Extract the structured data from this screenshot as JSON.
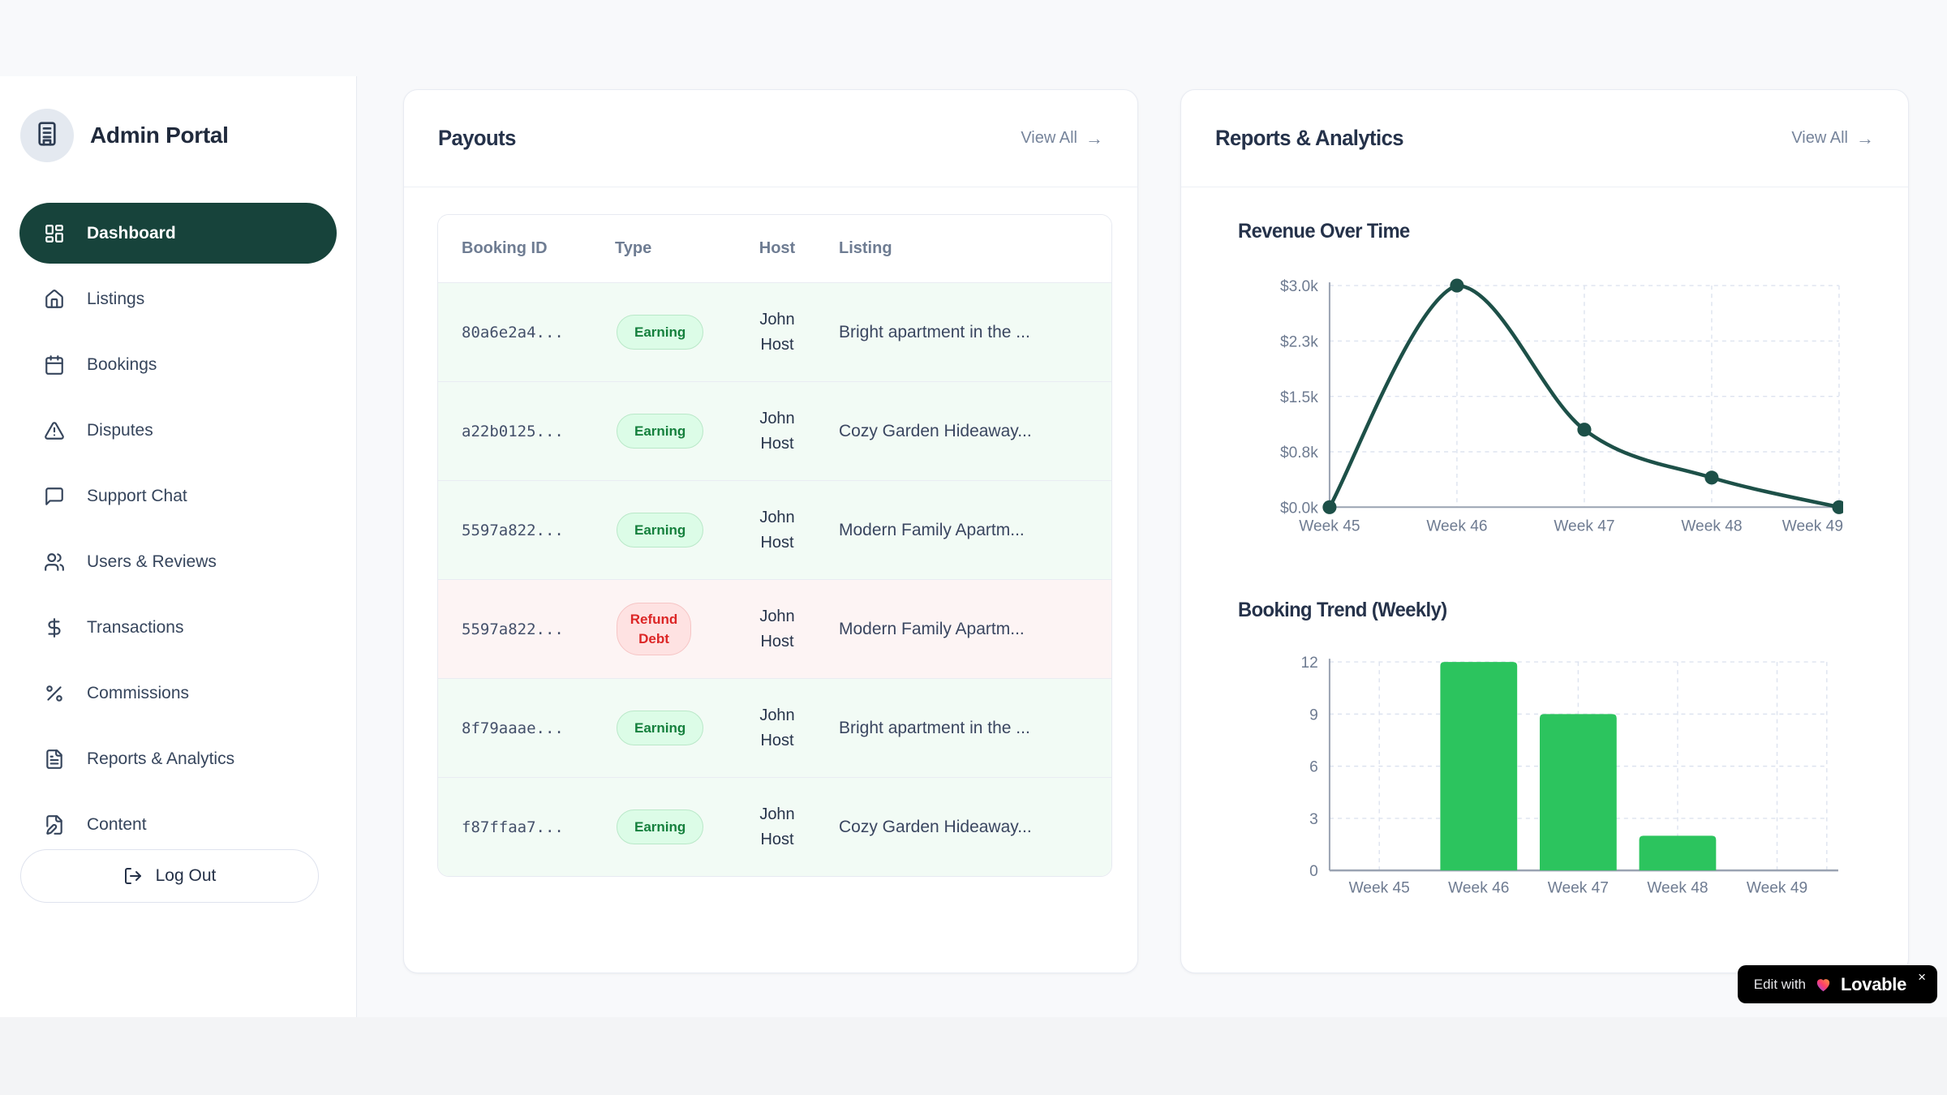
{
  "app": {
    "title": "Admin Portal"
  },
  "sidebar": {
    "items": [
      {
        "label": "Dashboard",
        "icon": "dashboard",
        "active": true
      },
      {
        "label": "Listings",
        "icon": "home",
        "active": false
      },
      {
        "label": "Bookings",
        "icon": "calendar",
        "active": false
      },
      {
        "label": "Disputes",
        "icon": "alert-triangle",
        "active": false
      },
      {
        "label": "Support Chat",
        "icon": "message-square",
        "active": false
      },
      {
        "label": "Users & Reviews",
        "icon": "users",
        "active": false
      },
      {
        "label": "Transactions",
        "icon": "dollar-sign",
        "active": false
      },
      {
        "label": "Commissions",
        "icon": "percent",
        "active": false
      },
      {
        "label": "Reports & Analytics",
        "icon": "file-text",
        "active": false
      },
      {
        "label": "Content",
        "icon": "file-pen",
        "active": false
      }
    ],
    "logout_label": "Log Out"
  },
  "payouts": {
    "title": "Payouts",
    "view_all_label": "View All",
    "view_all_arrow": "→",
    "columns": [
      "Booking ID",
      "Type",
      "Host",
      "Listing"
    ],
    "rows": [
      {
        "booking_id": "80a6e2a4...",
        "type": "Earning",
        "kind": "earning",
        "host": "John Host",
        "listing": "Bright apartment in the ..."
      },
      {
        "booking_id": "a22b0125...",
        "type": "Earning",
        "kind": "earning",
        "host": "John Host",
        "listing": "Cozy Garden Hideaway..."
      },
      {
        "booking_id": "5597a822...",
        "type": "Earning",
        "kind": "earning",
        "host": "John Host",
        "listing": "Modern Family Apartm..."
      },
      {
        "booking_id": "5597a822...",
        "type": "Refund Debt",
        "kind": "refund",
        "host": "John Host",
        "listing": "Modern Family Apartm..."
      },
      {
        "booking_id": "8f79aaae...",
        "type": "Earning",
        "kind": "earning",
        "host": "John Host",
        "listing": "Bright apartment in the ..."
      },
      {
        "booking_id": "f87ffaa7...",
        "type": "Earning",
        "kind": "earning",
        "host": "John Host",
        "listing": "Cozy Garden Hideaway..."
      }
    ]
  },
  "reports": {
    "title": "Reports & Analytics",
    "view_all_label": "View All",
    "view_all_arrow": "→"
  },
  "chart_data": [
    {
      "type": "line",
      "title": "Revenue Over Time",
      "x": [
        "Week 45",
        "Week 46",
        "Week 47",
        "Week 48",
        "Week 49"
      ],
      "values": [
        0,
        3000,
        1050,
        400,
        0
      ],
      "ylim": [
        0,
        3000
      ],
      "y_ticks": [
        {
          "v": 0,
          "label": "$0.0k"
        },
        {
          "v": 750,
          "label": "$0.8k"
        },
        {
          "v": 1500,
          "label": "$1.5k"
        },
        {
          "v": 2250,
          "label": "$2.3k"
        },
        {
          "v": 3000,
          "label": "$3.0k"
        }
      ],
      "grid": "dashed",
      "legend": "none",
      "line_color": "#1d5048",
      "point_color": "#1d5048"
    },
    {
      "type": "bar",
      "title": "Booking Trend (Weekly)",
      "categories": [
        "Week 45",
        "Week 46",
        "Week 47",
        "Week 48",
        "Week 49"
      ],
      "values": [
        0,
        12,
        9,
        2,
        0
      ],
      "ylim": [
        0,
        12
      ],
      "y_ticks": [
        0,
        3,
        6,
        9,
        12
      ],
      "grid": "dashed",
      "legend": "none",
      "bar_color": "#2cc45e"
    }
  ],
  "lovable": {
    "prefix": "Edit with",
    "brand": "Lovable",
    "close": "×"
  },
  "colors": {
    "page_bg": "#f8f9fb",
    "bottom_strip": "#f3f4f6",
    "sidebar_active": "#17433b",
    "nav_text": "#36455c",
    "card_border": "#e8ebf2",
    "line_chart": "#1d5048",
    "bar_green": "#2cc45e",
    "grid_line": "#dde3ef",
    "axis_line": "#9aa3b2",
    "tick_text": "#6e7b91",
    "earning_badge_bg": "#dcfce7",
    "earning_badge_text": "#15803d",
    "refund_badge_bg": "#fee2e2",
    "refund_badge_text": "#dc2626",
    "row_earning_bg": "#f2fbf5",
    "row_refund_bg": "#fdf4f4"
  }
}
